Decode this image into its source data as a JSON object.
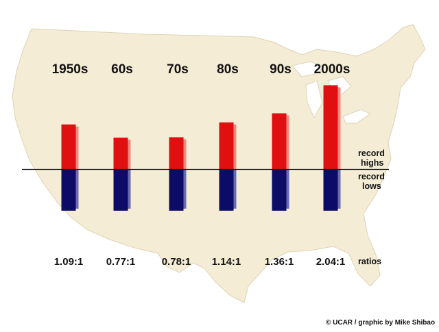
{
  "chart_data": {
    "type": "bar",
    "categories": [
      "1950s",
      "60s",
      "70s",
      "80s",
      "90s",
      "2000s"
    ],
    "series": [
      {
        "name": "record highs",
        "values": [
          1.09,
          0.77,
          0.78,
          1.14,
          1.36,
          2.04
        ]
      },
      {
        "name": "record lows",
        "values": [
          1,
          1,
          1,
          1,
          1,
          1
        ]
      }
    ],
    "ratios": [
      "1.09:1",
      "0.77:1",
      "0.78:1",
      "1.14:1",
      "1.36:1",
      "2.04:1"
    ],
    "labels": {
      "highs_line1": "record",
      "highs_line2": "highs",
      "lows_line1": "record",
      "lows_line2": "lows",
      "ratios": "ratios"
    },
    "credit": "© UCAR / graphic by Mike Shibao",
    "colors": {
      "highs": "#e01010",
      "highs_side": "#f28a82",
      "lows": "#0c0c66",
      "lows_side": "#6b6bb0",
      "map_fill": "#f4ecd4",
      "map_border": "#ddd3b6",
      "baseline": "#111111"
    }
  }
}
